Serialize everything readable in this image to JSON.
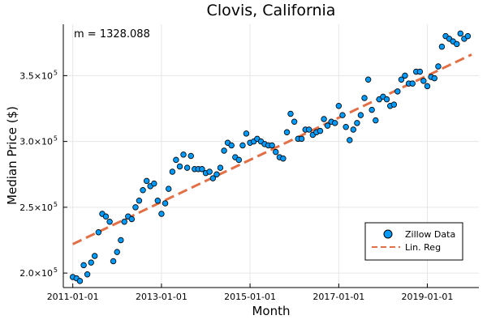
{
  "chart_data": {
    "type": "scatter",
    "title": "Clovis, California",
    "xlabel": "Month",
    "ylabel": "Median Price ($)",
    "annotation": "m = 1328.088",
    "xlim": [
      "2010-10-15",
      "2020-03-01"
    ],
    "ylim": [
      189000,
      389000
    ],
    "x_ticks": [
      "2011-01-01",
      "2013-01-01",
      "2015-01-01",
      "2017-01-01",
      "2019-01-01"
    ],
    "y_ticks": [
      {
        "value": 200000,
        "mantissa": "2.0×10",
        "exp": "5"
      },
      {
        "value": 250000,
        "mantissa": "2.5×10",
        "exp": "5"
      },
      {
        "value": 300000,
        "mantissa": "3.0×10",
        "exp": "5"
      },
      {
        "value": 350000,
        "mantissa": "3.5×10",
        "exp": "5"
      }
    ],
    "grid": true,
    "legend_position": "bottom-right",
    "colors": {
      "points": "#009AFA",
      "line": "#E26F46",
      "grid": "#E6E6E6"
    },
    "series": [
      {
        "name": "Zillow Data",
        "kind": "scatter",
        "x": [
          "2011-01-01",
          "2011-02-01",
          "2011-03-01",
          "2011-04-01",
          "2011-05-01",
          "2011-06-01",
          "2011-07-01",
          "2011-08-01",
          "2011-09-01",
          "2011-10-01",
          "2011-11-01",
          "2011-12-01",
          "2012-01-01",
          "2012-02-01",
          "2012-03-01",
          "2012-04-01",
          "2012-05-01",
          "2012-06-01",
          "2012-07-01",
          "2012-08-01",
          "2012-09-01",
          "2012-10-01",
          "2012-11-01",
          "2012-12-01",
          "2013-01-01",
          "2013-02-01",
          "2013-03-01",
          "2013-04-01",
          "2013-05-01",
          "2013-06-01",
          "2013-07-01",
          "2013-08-01",
          "2013-09-01",
          "2013-10-01",
          "2013-11-01",
          "2013-12-01",
          "2014-01-01",
          "2014-02-01",
          "2014-03-01",
          "2014-04-01",
          "2014-05-01",
          "2014-06-01",
          "2014-07-01",
          "2014-08-01",
          "2014-09-01",
          "2014-10-01",
          "2014-11-01",
          "2014-12-01",
          "2015-01-01",
          "2015-02-01",
          "2015-03-01",
          "2015-04-01",
          "2015-05-01",
          "2015-06-01",
          "2015-07-01",
          "2015-08-01",
          "2015-09-01",
          "2015-10-01",
          "2015-11-01",
          "2015-12-01",
          "2016-01-01",
          "2016-02-01",
          "2016-03-01",
          "2016-04-01",
          "2016-05-01",
          "2016-06-01",
          "2016-07-01",
          "2016-08-01",
          "2016-09-01",
          "2016-10-01",
          "2016-11-01",
          "2016-12-01",
          "2017-01-01",
          "2017-02-01",
          "2017-03-01",
          "2017-04-01",
          "2017-05-01",
          "2017-06-01",
          "2017-07-01",
          "2017-08-01",
          "2017-09-01",
          "2017-10-01",
          "2017-11-01",
          "2017-12-01",
          "2018-01-01",
          "2018-02-01",
          "2018-03-01",
          "2018-04-01",
          "2018-05-01",
          "2018-06-01",
          "2018-07-01",
          "2018-08-01",
          "2018-09-01",
          "2018-10-01",
          "2018-11-01",
          "2018-12-01",
          "2019-01-01",
          "2019-02-01",
          "2019-03-01",
          "2019-04-01",
          "2019-05-01",
          "2019-06-01",
          "2019-07-01",
          "2019-08-01",
          "2019-09-01",
          "2019-10-01",
          "2019-11-01",
          "2019-12-01"
        ],
        "y": [
          197000,
          196000,
          194000,
          206000,
          199000,
          208000,
          213000,
          231000,
          245000,
          243000,
          239000,
          209000,
          216000,
          225000,
          239000,
          243000,
          241000,
          250000,
          255000,
          263000,
          270000,
          266000,
          268000,
          255000,
          245000,
          253000,
          264000,
          277000,
          286000,
          281000,
          290000,
          280000,
          289000,
          279000,
          279000,
          279000,
          276000,
          277000,
          272000,
          275000,
          280000,
          293000,
          299000,
          297000,
          288000,
          286000,
          297000,
          306000,
          299000,
          300000,
          302000,
          300000,
          298000,
          297000,
          297000,
          292000,
          288000,
          287000,
          307000,
          321000,
          315000,
          302000,
          302000,
          309000,
          309000,
          305000,
          307000,
          308000,
          317000,
          312000,
          315000,
          314000,
          327000,
          320000,
          311000,
          301000,
          309000,
          314000,
          320000,
          333000,
          347000,
          324000,
          316000,
          332000,
          334000,
          332000,
          327000,
          328000,
          338000,
          347000,
          350000,
          344000,
          344000,
          353000,
          353000,
          346000,
          342000,
          349000,
          348000,
          357000,
          372000,
          380000,
          378000,
          376000,
          374000,
          382000,
          378000,
          380000
        ]
      },
      {
        "name": "Lin. Reg",
        "kind": "line",
        "x": [
          "2011-01-01",
          "2020-01-01"
        ],
        "y": [
          222000,
          366000
        ]
      }
    ]
  }
}
